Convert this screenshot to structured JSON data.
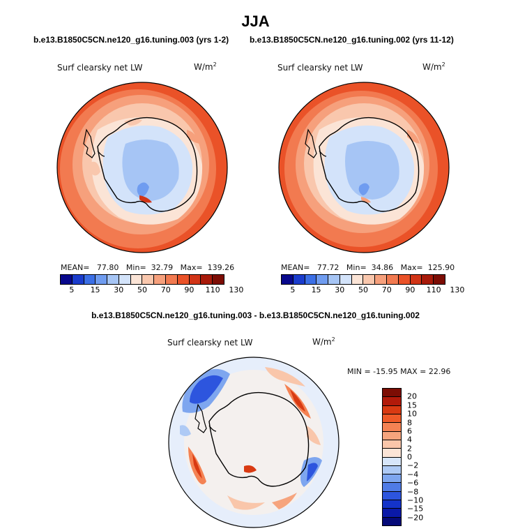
{
  "page": {
    "title": "JJA",
    "left_case": "b.e13.B1850C5CN.ne120_g16.tuning.003 (yrs 1-2)",
    "right_case": "b.e13.B1850C5CN.ne120_g16.tuning.002 (yrs 11-12)",
    "diff_title": "b.e13.B1850C5CN.ne120_g16.tuning.003 - b.e13.B1850C5CN.ne120_g16.tuning.002"
  },
  "maps": {
    "left": {
      "variable": "Surf clearsky net LW",
      "units": "W/m",
      "units_sup": "2",
      "mean_label": "MEAN=",
      "mean": "77.80",
      "min_label": "Min=",
      "min": "32.79",
      "max_label": "Max=",
      "max": "139.26"
    },
    "right": {
      "variable": "Surf clearsky net LW",
      "units": "W/m",
      "units_sup": "2",
      "mean_label": "MEAN=",
      "mean": "77.72",
      "min_label": "Min=",
      "min": "34.86",
      "max_label": "Max=",
      "max": "125.90"
    },
    "diff": {
      "variable": "Surf clearsky net LW",
      "units": "W/m",
      "units_sup": "2",
      "minmax": "MIN = -15.95  MAX =  22.96"
    }
  },
  "colorbars": {
    "abs": {
      "colors": [
        "#08088c",
        "#1a3ccc",
        "#3b6fe6",
        "#6f9cf0",
        "#a6c5f5",
        "#d3e3fa",
        "#fbe4d6",
        "#f9c7ad",
        "#f6a07c",
        "#f27a50",
        "#ea5228",
        "#d13416",
        "#a81a0a",
        "#7c0d04"
      ],
      "labels": [
        "5",
        "15",
        "30",
        "50",
        "70",
        "90",
        "110",
        "130"
      ]
    },
    "diff": {
      "colors": [
        "#7c0d04",
        "#b21a0a",
        "#d93a12",
        "#ef5a28",
        "#f48253",
        "#f6a47d",
        "#f9c6aa",
        "#fbe4d6",
        "#d7e6fa",
        "#aecaf5",
        "#7ea6ef",
        "#4f7be6",
        "#2d55de",
        "#1433c9",
        "#0a19a8",
        "#050a78"
      ],
      "labels": [
        "20",
        "15",
        "10",
        "8",
        "6",
        "4",
        "2",
        "0",
        "−2",
        "−4",
        "−6",
        "−8",
        "−10",
        "−15",
        "−20"
      ]
    }
  }
}
